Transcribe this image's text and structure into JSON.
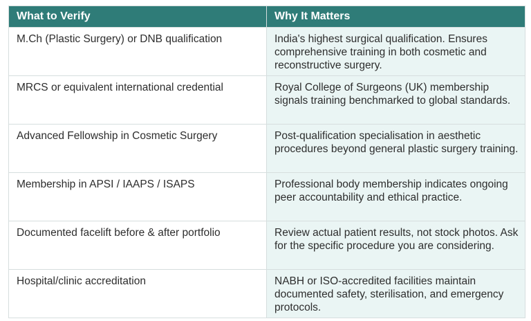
{
  "table": {
    "header": [
      "What to Verify",
      "Why It Matters"
    ],
    "rows": [
      [
        "M.Ch (Plastic Surgery) or DNB qualification",
        "India's highest surgical qualification. Ensures comprehensive training in both cosmetic and reconstructive surgery."
      ],
      [
        "MRCS or equivalent international credential",
        "Royal College of Surgeons (UK) membership signals training benchmarked to global standards."
      ],
      [
        "Advanced Fellowship in Cosmetic Surgery",
        "Post-qualification specialisation in aesthetic procedures beyond general plastic surgery training."
      ],
      [
        "Membership in APSI / IAAPS / ISAPS",
        "Professional body membership indicates ongoing peer accountability and ethical practice."
      ],
      [
        "Documented facelift before & after portfolio",
        "Review actual patient results, not stock photos. Ask for the specific procedure you are considering."
      ],
      [
        "Hospital/clinic accreditation",
        "NABH or ISO-accredited facilities maintain documented safety, sterilisation, and emergency protocols."
      ]
    ]
  }
}
